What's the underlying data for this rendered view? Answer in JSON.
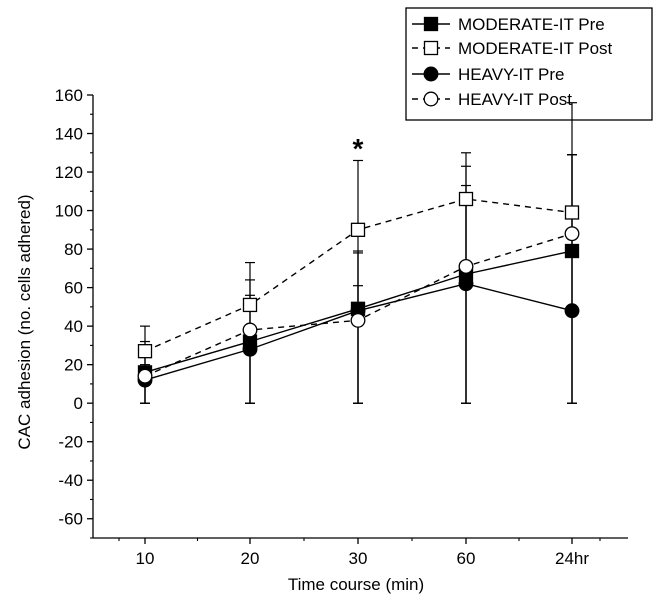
{
  "chart_data": {
    "type": "line",
    "title": "",
    "xlabel": "Time course (min)",
    "ylabel": "CAC adhesion (no. cells adhered)",
    "categories": [
      "10",
      "20",
      "30",
      "60",
      "24hr"
    ],
    "ylim": [
      -70,
      160
    ],
    "yticks": [
      -60,
      -40,
      -20,
      0,
      20,
      40,
      60,
      80,
      100,
      120,
      140,
      160
    ],
    "grid": false,
    "legend_position": "top-right",
    "annotations": [
      {
        "text": "*",
        "category": "30"
      }
    ],
    "series": [
      {
        "name": "MODERATE-IT Pre",
        "marker": "square-filled",
        "dash": "solid",
        "values": [
          16,
          32,
          49,
          67,
          79
        ],
        "errors": [
          [
            16,
            16
          ],
          [
            32,
            32
          ],
          [
            49,
            30
          ],
          [
            67,
            46
          ],
          [
            79,
            50
          ]
        ]
      },
      {
        "name": "MODERATE-IT Post",
        "marker": "square-open",
        "dash": "dashed",
        "values": [
          27,
          51,
          90,
          106,
          99
        ],
        "errors": [
          [
            27,
            13
          ],
          [
            51,
            22
          ],
          [
            90,
            36
          ],
          [
            106,
            24
          ],
          [
            99,
            30
          ]
        ]
      },
      {
        "name": "HEAVY-IT Pre",
        "marker": "circle-filled",
        "dash": "solid",
        "values": [
          12,
          28,
          48,
          62,
          48
        ],
        "errors": [
          [
            12,
            8
          ],
          [
            28,
            8
          ],
          [
            48,
            30
          ],
          [
            62,
            42
          ],
          [
            48,
            108
          ]
        ]
      },
      {
        "name": "HEAVY-IT Post",
        "marker": "circle-open",
        "dash": "dashed",
        "values": [
          14,
          38,
          43,
          71,
          88
        ],
        "errors": [
          [
            14,
            10
          ],
          [
            38,
            18
          ],
          [
            43,
            18
          ],
          [
            71,
            52
          ],
          [
            88,
            41
          ]
        ]
      }
    ]
  }
}
